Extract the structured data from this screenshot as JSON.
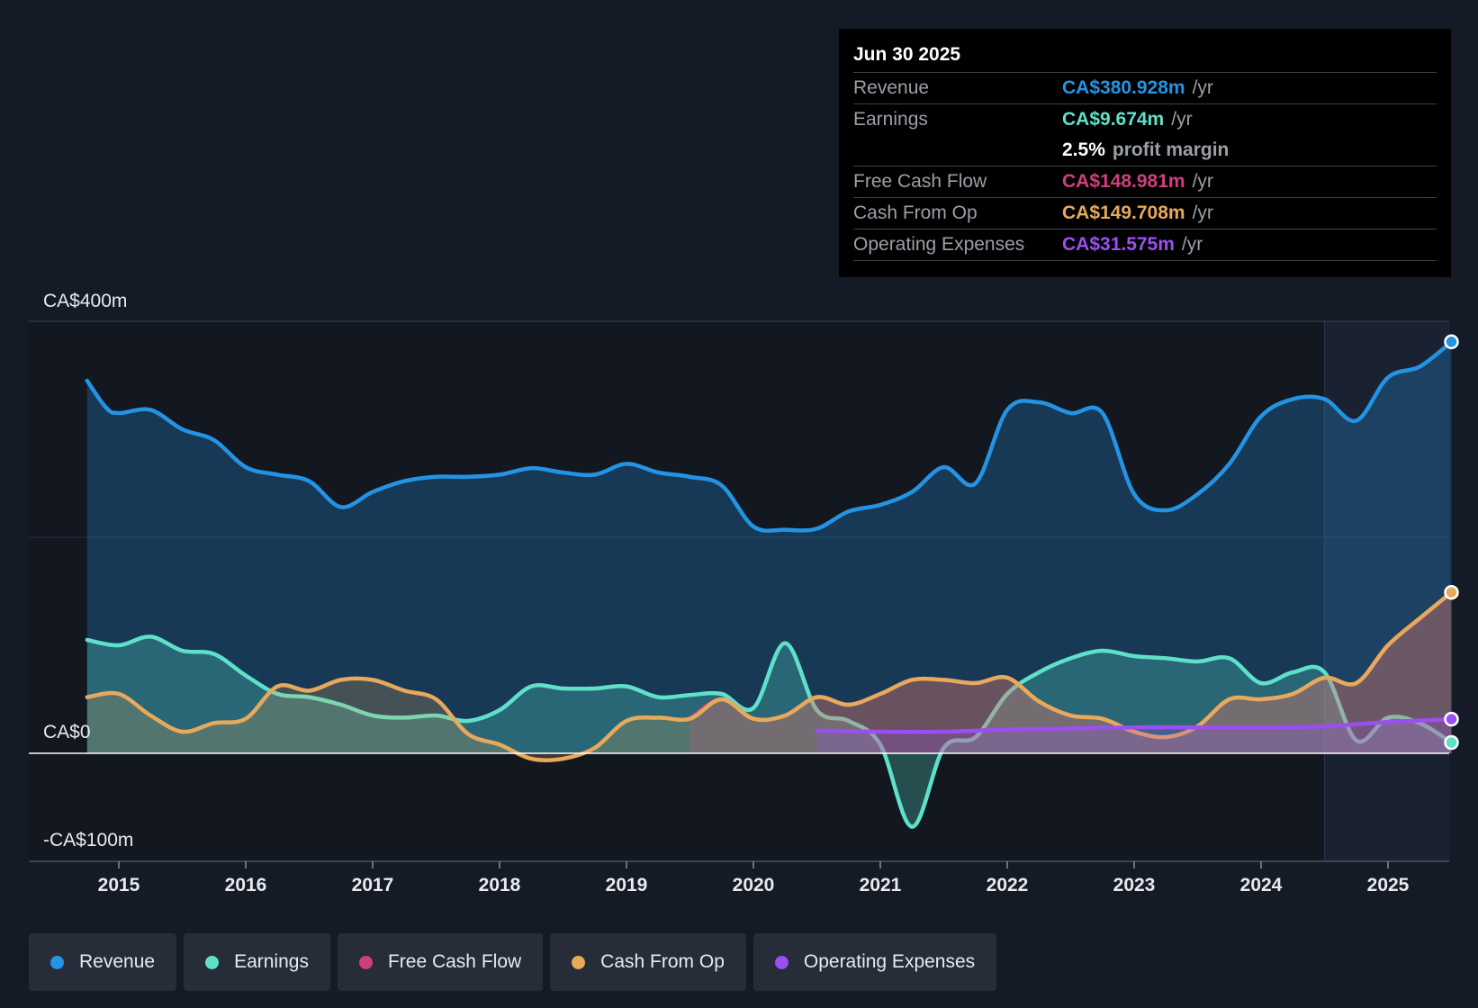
{
  "chart_data": {
    "type": "area",
    "x_unit": "year",
    "xlim": [
      2014.5,
      2025.72
    ],
    "ylim": [
      -100,
      400
    ],
    "y_axis_labels": [
      {
        "value": 400,
        "label": "CA$400m"
      },
      {
        "value": 0,
        "label": "CA$0"
      },
      {
        "value": -100,
        "label": "-CA$100m"
      }
    ],
    "x_ticks": [
      {
        "value": 2015,
        "label": "2015"
      },
      {
        "value": 2016,
        "label": "2016"
      },
      {
        "value": 2017,
        "label": "2017"
      },
      {
        "value": 2018,
        "label": "2018"
      },
      {
        "value": 2019,
        "label": "2019"
      },
      {
        "value": 2020,
        "label": "2020"
      },
      {
        "value": 2021,
        "label": "2021"
      },
      {
        "value": 2022,
        "label": "2022"
      },
      {
        "value": 2023,
        "label": "2023"
      },
      {
        "value": 2024,
        "label": "2024"
      },
      {
        "value": 2025,
        "label": "2025"
      }
    ],
    "highlight_range": [
      2024.5,
      2025.5
    ],
    "series": [
      {
        "name": "Revenue",
        "color": "#2394e4",
        "fill_opacity": 0.28,
        "end_marker": true,
        "x": [
          2014.75,
          2014.9,
          2015.0,
          2015.25,
          2015.5,
          2015.75,
          2016.0,
          2016.25,
          2016.5,
          2016.75,
          2017.0,
          2017.25,
          2017.5,
          2017.75,
          2018.0,
          2018.25,
          2018.5,
          2018.75,
          2019.0,
          2019.25,
          2019.5,
          2019.75,
          2020.0,
          2020.25,
          2020.5,
          2020.75,
          2021.0,
          2021.25,
          2021.5,
          2021.75,
          2022.0,
          2022.25,
          2022.5,
          2022.75,
          2023.0,
          2023.25,
          2023.5,
          2023.75,
          2024.0,
          2024.25,
          2024.5,
          2024.75,
          2025.0,
          2025.25,
          2025.5
        ],
        "y": [
          345,
          320,
          315,
          318,
          300,
          290,
          265,
          258,
          252,
          228,
          242,
          252,
          256,
          256,
          258,
          264,
          260,
          258,
          268,
          260,
          256,
          248,
          210,
          207,
          208,
          224,
          230,
          242,
          265,
          250,
          318,
          325,
          315,
          315,
          240,
          225,
          240,
          268,
          312,
          328,
          328,
          308,
          348,
          358,
          381
        ]
      },
      {
        "name": "Earnings",
        "color": "#5fe0c8",
        "fill_opacity": 0.28,
        "end_marker": true,
        "x": [
          2014.75,
          2015.0,
          2015.25,
          2015.5,
          2015.75,
          2016.0,
          2016.25,
          2016.5,
          2016.75,
          2017.0,
          2017.25,
          2017.5,
          2017.75,
          2018.0,
          2018.25,
          2018.5,
          2018.75,
          2019.0,
          2019.25,
          2019.5,
          2019.75,
          2020.0,
          2020.25,
          2020.5,
          2020.75,
          2021.0,
          2021.25,
          2021.5,
          2021.75,
          2022.0,
          2022.25,
          2022.5,
          2022.75,
          2023.0,
          2023.25,
          2023.5,
          2023.75,
          2024.0,
          2024.25,
          2024.5,
          2024.75,
          2025.0,
          2025.25,
          2025.5
        ],
        "y": [
          105,
          100,
          108,
          95,
          92,
          72,
          55,
          52,
          45,
          35,
          33,
          35,
          30,
          40,
          62,
          60,
          60,
          62,
          52,
          54,
          55,
          42,
          102,
          40,
          30,
          8,
          -68,
          5,
          15,
          55,
          75,
          88,
          95,
          90,
          88,
          85,
          88,
          65,
          75,
          75,
          12,
          33,
          28,
          10
        ]
      },
      {
        "name": "Free Cash Flow",
        "color": "#cf3f7f",
        "fill_opacity": 0.25,
        "end_marker": false,
        "x": [
          2019.5,
          2019.75,
          2020.0,
          2020.25,
          2020.5,
          2020.75,
          2021.0,
          2021.25,
          2021.5,
          2021.75,
          2022.0,
          2022.25,
          2022.5,
          2022.75,
          2023.0,
          2023.25,
          2023.5,
          2023.75,
          2024.0,
          2024.25,
          2024.5,
          2024.75,
          2025.0,
          2025.25,
          2025.5
        ],
        "y": [
          32,
          50,
          32,
          35,
          52,
          45,
          55,
          68,
          68,
          65,
          70,
          48,
          35,
          32,
          20,
          15,
          25,
          50,
          50,
          55,
          70,
          65,
          100,
          125,
          149
        ]
      },
      {
        "name": "Cash From Op",
        "color": "#e7a95a",
        "fill_opacity": 0.22,
        "end_marker": true,
        "x": [
          2014.75,
          2015.0,
          2015.25,
          2015.5,
          2015.75,
          2016.0,
          2016.25,
          2016.5,
          2016.75,
          2017.0,
          2017.25,
          2017.5,
          2017.75,
          2018.0,
          2018.25,
          2018.5,
          2018.75,
          2019.0,
          2019.25,
          2019.5,
          2019.75,
          2020.0,
          2020.25,
          2020.5,
          2020.75,
          2021.0,
          2021.25,
          2021.5,
          2021.75,
          2022.0,
          2022.25,
          2022.5,
          2022.75,
          2023.0,
          2023.25,
          2023.5,
          2023.75,
          2024.0,
          2024.25,
          2024.5,
          2024.75,
          2025.0,
          2025.25,
          2025.5
        ],
        "y": [
          52,
          55,
          35,
          20,
          28,
          32,
          62,
          58,
          68,
          68,
          58,
          50,
          18,
          8,
          -5,
          -5,
          5,
          30,
          33,
          32,
          50,
          32,
          35,
          52,
          45,
          55,
          68,
          68,
          65,
          70,
          48,
          35,
          32,
          20,
          15,
          25,
          50,
          50,
          55,
          70,
          65,
          100,
          125,
          149
        ]
      },
      {
        "name": "Operating Expenses",
        "color": "#9b4ff0",
        "fill_opacity": 0.22,
        "end_marker": true,
        "x": [
          2020.5,
          2021.0,
          2021.5,
          2022.0,
          2022.5,
          2023.0,
          2023.5,
          2024.0,
          2024.5,
          2025.0,
          2025.5
        ],
        "y": [
          21,
          20,
          20,
          22,
          23,
          24,
          24,
          24,
          25,
          29,
          31.6
        ]
      }
    ]
  },
  "tooltip": {
    "date": "Jun 30 2025",
    "rows": [
      {
        "label": "Revenue",
        "value": "CA$380.928m",
        "unit": "/yr",
        "color": "#2394e4"
      },
      {
        "label": "Earnings",
        "value": "CA$9.674m",
        "unit": "/yr",
        "color": "#5fe0c8"
      },
      {
        "label": "",
        "value": "2.5%",
        "unit": "profit margin",
        "color": "#ffffff"
      },
      {
        "label": "Free Cash Flow",
        "value": "CA$148.981m",
        "unit": "/yr",
        "color": "#cf3f7f"
      },
      {
        "label": "Cash From Op",
        "value": "CA$149.708m",
        "unit": "/yr",
        "color": "#e7a95a"
      },
      {
        "label": "Operating Expenses",
        "value": "CA$31.575m",
        "unit": "/yr",
        "color": "#9b4ff0"
      }
    ]
  },
  "legend": [
    {
      "label": "Revenue",
      "color": "#2394e4"
    },
    {
      "label": "Earnings",
      "color": "#5fe0c8"
    },
    {
      "label": "Free Cash Flow",
      "color": "#cf3f7f"
    },
    {
      "label": "Cash From Op",
      "color": "#e7a95a"
    },
    {
      "label": "Operating Expenses",
      "color": "#9b4ff0"
    }
  ]
}
